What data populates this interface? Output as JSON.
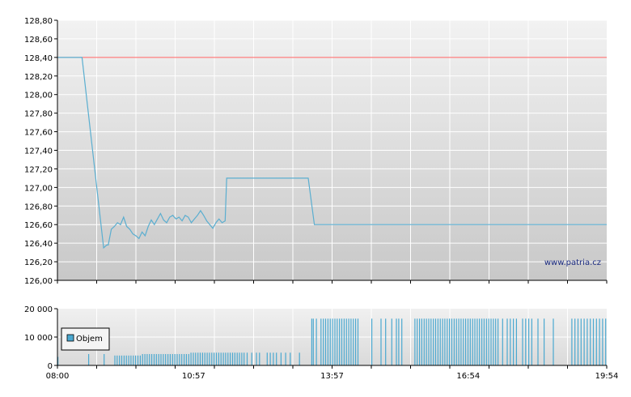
{
  "watermark": "www.patria.cz",
  "colors": {
    "price_line": "#5aaed0",
    "reference_line": "#ff6060",
    "volume_bar": "#4aa8d0",
    "axis": "#000000",
    "grid": "#ffffff"
  },
  "chart_data": [
    {
      "type": "line",
      "title": "",
      "xlabel": "",
      "ylabel": "",
      "x_range": [
        "08:00",
        "19:54"
      ],
      "ylim": [
        126.0,
        128.8
      ],
      "y_ticks": [
        "128,80",
        "128,60",
        "128,40",
        "128,20",
        "128,00",
        "127,80",
        "127,60",
        "127,40",
        "127,20",
        "127,00",
        "126,80",
        "126,60",
        "126,40",
        "126,20",
        "126,00"
      ],
      "grid": true,
      "reference_level": 128.4,
      "series": [
        {
          "x": [
            "08:00",
            "08:32",
            "09:00",
            "09:04",
            "09:06",
            "09:10",
            "09:14",
            "09:18",
            "09:22",
            "09:26",
            "09:30",
            "09:34",
            "09:38",
            "09:42",
            "09:46",
            "09:50",
            "09:54",
            "09:58",
            "10:02",
            "10:06",
            "10:10",
            "10:14",
            "10:18",
            "10:22",
            "10:26",
            "10:30",
            "10:34",
            "10:38",
            "10:42",
            "10:46",
            "10:50",
            "10:54",
            "10:58",
            "11:02",
            "11:06",
            "11:10",
            "11:14",
            "11:18",
            "11:22",
            "11:26",
            "11:30",
            "11:34",
            "11:38",
            "11:40",
            "11:48",
            "13:26",
            "13:34",
            "19:54"
          ],
          "values": [
            128.4,
            128.4,
            126.35,
            126.38,
            126.38,
            126.55,
            126.58,
            126.62,
            126.6,
            126.68,
            126.58,
            126.55,
            126.5,
            126.48,
            126.45,
            126.52,
            126.48,
            126.58,
            126.65,
            126.6,
            126.66,
            126.72,
            126.65,
            126.62,
            126.68,
            126.7,
            126.66,
            126.68,
            126.64,
            126.7,
            126.68,
            126.62,
            126.66,
            126.7,
            126.75,
            126.7,
            126.64,
            126.6,
            126.56,
            126.62,
            126.66,
            126.62,
            126.64,
            127.1,
            127.1,
            127.1,
            126.6,
            126.6
          ]
        },
        {
          "values_constant": 128.4
        }
      ]
    },
    {
      "type": "bar",
      "title": "",
      "legend": [
        "Objem"
      ],
      "legend_position": "left",
      "x_ticks": [
        "08:00",
        "10:57",
        "13:57",
        "16:54",
        "19:54"
      ],
      "y_ticks": [
        "20 000",
        "10 000",
        "0"
      ],
      "ylim": [
        0,
        20000
      ],
      "volume_bars": [
        {
          "t": "08:00",
          "v": 3000
        },
        {
          "t": "08:40",
          "v": 4000
        },
        {
          "t": "09:00",
          "v": 4000
        },
        {
          "t": "09:14",
          "v": 3500
        },
        {
          "t": "09:17",
          "v": 3500
        },
        {
          "t": "09:20",
          "v": 3500
        },
        {
          "t": "09:23",
          "v": 3500
        },
        {
          "t": "09:26",
          "v": 3500
        },
        {
          "t": "09:29",
          "v": 3500
        },
        {
          "t": "09:32",
          "v": 3500
        },
        {
          "t": "09:35",
          "v": 3500
        },
        {
          "t": "09:38",
          "v": 3500
        },
        {
          "t": "09:41",
          "v": 3500
        },
        {
          "t": "09:44",
          "v": 3500
        },
        {
          "t": "09:47",
          "v": 3500
        },
        {
          "t": "09:50",
          "v": 4000
        },
        {
          "t": "09:53",
          "v": 4000
        },
        {
          "t": "09:56",
          "v": 4000
        },
        {
          "t": "09:59",
          "v": 4000
        },
        {
          "t": "10:02",
          "v": 4000
        },
        {
          "t": "10:05",
          "v": 4000
        },
        {
          "t": "10:08",
          "v": 4000
        },
        {
          "t": "10:11",
          "v": 4000
        },
        {
          "t": "10:14",
          "v": 4000
        },
        {
          "t": "10:17",
          "v": 4000
        },
        {
          "t": "10:20",
          "v": 4000
        },
        {
          "t": "10:23",
          "v": 4000
        },
        {
          "t": "10:26",
          "v": 4000
        },
        {
          "t": "10:29",
          "v": 4000
        },
        {
          "t": "10:32",
          "v": 4000
        },
        {
          "t": "10:35",
          "v": 4000
        },
        {
          "t": "10:38",
          "v": 4000
        },
        {
          "t": "10:41",
          "v": 4000
        },
        {
          "t": "10:44",
          "v": 4000
        },
        {
          "t": "10:47",
          "v": 4000
        },
        {
          "t": "10:50",
          "v": 4000
        },
        {
          "t": "10:53",
          "v": 4500
        },
        {
          "t": "10:56",
          "v": 4500
        },
        {
          "t": "10:59",
          "v": 4500
        },
        {
          "t": "11:02",
          "v": 4500
        },
        {
          "t": "11:05",
          "v": 4500
        },
        {
          "t": "11:08",
          "v": 4500
        },
        {
          "t": "11:11",
          "v": 4500
        },
        {
          "t": "11:14",
          "v": 4500
        },
        {
          "t": "11:17",
          "v": 4500
        },
        {
          "t": "11:20",
          "v": 4500
        },
        {
          "t": "11:23",
          "v": 4500
        },
        {
          "t": "11:26",
          "v": 4500
        },
        {
          "t": "11:29",
          "v": 4500
        },
        {
          "t": "11:32",
          "v": 4500
        },
        {
          "t": "11:35",
          "v": 4500
        },
        {
          "t": "11:38",
          "v": 4500
        },
        {
          "t": "11:41",
          "v": 4500
        },
        {
          "t": "11:44",
          "v": 4500
        },
        {
          "t": "11:47",
          "v": 4500
        },
        {
          "t": "11:50",
          "v": 4500
        },
        {
          "t": "11:53",
          "v": 4500
        },
        {
          "t": "11:56",
          "v": 4500
        },
        {
          "t": "11:59",
          "v": 4500
        },
        {
          "t": "12:02",
          "v": 4500
        },
        {
          "t": "12:06",
          "v": 4500
        },
        {
          "t": "12:12",
          "v": 4500
        },
        {
          "t": "12:18",
          "v": 4500
        },
        {
          "t": "12:22",
          "v": 4500
        },
        {
          "t": "12:32",
          "v": 4500
        },
        {
          "t": "12:36",
          "v": 4500
        },
        {
          "t": "12:40",
          "v": 4500
        },
        {
          "t": "12:44",
          "v": 4500
        },
        {
          "t": "12:50",
          "v": 4500
        },
        {
          "t": "12:56",
          "v": 4500
        },
        {
          "t": "13:02",
          "v": 4500
        },
        {
          "t": "13:14",
          "v": 4500
        },
        {
          "t": "13:30",
          "v": 16500
        },
        {
          "t": "13:32",
          "v": 16500
        },
        {
          "t": "13:36",
          "v": 16500
        },
        {
          "t": "13:42",
          "v": 16500
        },
        {
          "t": "13:45",
          "v": 16500
        },
        {
          "t": "13:48",
          "v": 16500
        },
        {
          "t": "13:51",
          "v": 16500
        },
        {
          "t": "13:54",
          "v": 16500
        },
        {
          "t": "13:57",
          "v": 16500
        },
        {
          "t": "14:00",
          "v": 16500
        },
        {
          "t": "14:03",
          "v": 16500
        },
        {
          "t": "14:06",
          "v": 16500
        },
        {
          "t": "14:09",
          "v": 16500
        },
        {
          "t": "14:12",
          "v": 16500
        },
        {
          "t": "14:15",
          "v": 16500
        },
        {
          "t": "14:18",
          "v": 16500
        },
        {
          "t": "14:21",
          "v": 16500
        },
        {
          "t": "14:24",
          "v": 16500
        },
        {
          "t": "14:27",
          "v": 16500
        },
        {
          "t": "14:30",
          "v": 16500
        },
        {
          "t": "14:48",
          "v": 16500
        },
        {
          "t": "15:00",
          "v": 16500
        },
        {
          "t": "15:06",
          "v": 16500
        },
        {
          "t": "15:14",
          "v": 16500
        },
        {
          "t": "15:20",
          "v": 16500
        },
        {
          "t": "15:23",
          "v": 16500
        },
        {
          "t": "15:27",
          "v": 16500
        },
        {
          "t": "15:44",
          "v": 16500
        },
        {
          "t": "15:47",
          "v": 16500
        },
        {
          "t": "15:50",
          "v": 16500
        },
        {
          "t": "15:53",
          "v": 16500
        },
        {
          "t": "15:56",
          "v": 16500
        },
        {
          "t": "15:59",
          "v": 16500
        },
        {
          "t": "16:02",
          "v": 16500
        },
        {
          "t": "16:05",
          "v": 16500
        },
        {
          "t": "16:08",
          "v": 16500
        },
        {
          "t": "16:11",
          "v": 16500
        },
        {
          "t": "16:14",
          "v": 16500
        },
        {
          "t": "16:17",
          "v": 16500
        },
        {
          "t": "16:20",
          "v": 16500
        },
        {
          "t": "16:23",
          "v": 16500
        },
        {
          "t": "16:26",
          "v": 16500
        },
        {
          "t": "16:29",
          "v": 16500
        },
        {
          "t": "16:32",
          "v": 16500
        },
        {
          "t": "16:35",
          "v": 16500
        },
        {
          "t": "16:38",
          "v": 16500
        },
        {
          "t": "16:41",
          "v": 16500
        },
        {
          "t": "16:44",
          "v": 16500
        },
        {
          "t": "16:47",
          "v": 16500
        },
        {
          "t": "16:50",
          "v": 16500
        },
        {
          "t": "16:53",
          "v": 16500
        },
        {
          "t": "16:56",
          "v": 16500
        },
        {
          "t": "16:59",
          "v": 16500
        },
        {
          "t": "17:02",
          "v": 16500
        },
        {
          "t": "17:05",
          "v": 16500
        },
        {
          "t": "17:08",
          "v": 16500
        },
        {
          "t": "17:11",
          "v": 16500
        },
        {
          "t": "17:14",
          "v": 16500
        },
        {
          "t": "17:17",
          "v": 16500
        },
        {
          "t": "17:20",
          "v": 16500
        },
        {
          "t": "17:23",
          "v": 16500
        },
        {
          "t": "17:26",
          "v": 16500
        },
        {
          "t": "17:29",
          "v": 16500
        },
        {
          "t": "17:32",
          "v": 16500
        },
        {
          "t": "17:38",
          "v": 16500
        },
        {
          "t": "17:44",
          "v": 16500
        },
        {
          "t": "17:48",
          "v": 16500
        },
        {
          "t": "17:52",
          "v": 16500
        },
        {
          "t": "17:56",
          "v": 16500
        },
        {
          "t": "18:04",
          "v": 16500
        },
        {
          "t": "18:08",
          "v": 16500
        },
        {
          "t": "18:12",
          "v": 16500
        },
        {
          "t": "18:16",
          "v": 16500
        },
        {
          "t": "18:24",
          "v": 16500
        },
        {
          "t": "18:32",
          "v": 16500
        },
        {
          "t": "18:44",
          "v": 16500
        },
        {
          "t": "19:08",
          "v": 16500
        },
        {
          "t": "19:12",
          "v": 16500
        },
        {
          "t": "19:16",
          "v": 16500
        },
        {
          "t": "19:20",
          "v": 16500
        },
        {
          "t": "19:24",
          "v": 16500
        },
        {
          "t": "19:28",
          "v": 16500
        },
        {
          "t": "19:32",
          "v": 16500
        },
        {
          "t": "19:36",
          "v": 16500
        },
        {
          "t": "19:40",
          "v": 16500
        },
        {
          "t": "19:44",
          "v": 16500
        },
        {
          "t": "19:48",
          "v": 16500
        },
        {
          "t": "19:52",
          "v": 16500
        }
      ]
    }
  ]
}
